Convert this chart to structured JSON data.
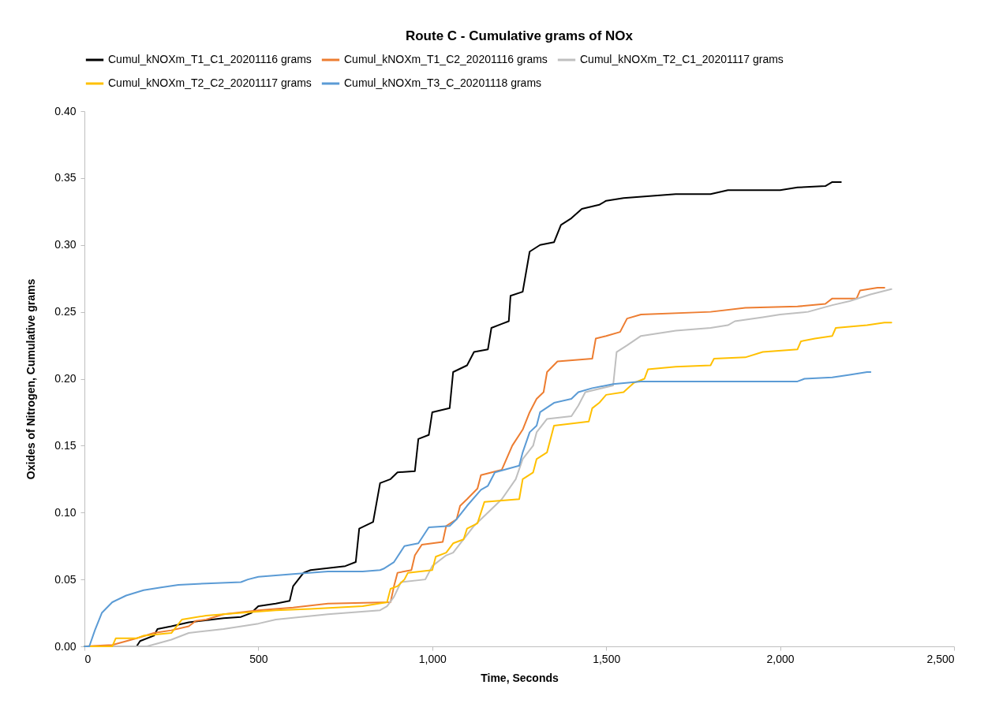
{
  "chart_data": {
    "type": "line",
    "title": "Route C - Cumulative grams of NOx",
    "xlabel": "Time, Seconds",
    "ylabel": "Oxides of Nitrogen, Cumulative grams",
    "xlim": [
      0,
      2500
    ],
    "xticks": [
      0,
      500,
      {
        "value": 1000,
        "label": "1,000"
      },
      {
        "value": 1500,
        "label": "1,500"
      },
      {
        "value": 2000,
        "label": "2,000"
      },
      {
        "value": 2500,
        "label": "2,500"
      }
    ],
    "ylim": [
      0,
      0.4
    ],
    "yticks": [
      {
        "value": 0,
        "label": "0.00"
      },
      0.05,
      {
        "value": 0.1,
        "label": "0.10"
      },
      0.15,
      {
        "value": 0.2,
        "label": "0.20"
      },
      0.25,
      {
        "value": 0.3,
        "label": "0.30"
      },
      0.35,
      {
        "value": 0.4,
        "label": "0.40"
      }
    ],
    "legend": "top",
    "line_style": "solid",
    "series": [
      {
        "name": "Cumul_kNOXm_T1_C1_20201116 grams",
        "color": "#000000",
        "x": [
          0,
          150,
          160,
          200,
          210,
          250,
          300,
          400,
          450,
          480,
          500,
          550,
          590,
          600,
          630,
          650,
          750,
          780,
          790,
          830,
          850,
          880,
          900,
          950,
          960,
          990,
          1000,
          1050,
          1060,
          1100,
          1120,
          1160,
          1170,
          1200,
          1220,
          1225,
          1260,
          1280,
          1310,
          1350,
          1370,
          1400,
          1430,
          1480,
          1500,
          1550,
          1700,
          1800,
          1850,
          2000,
          2050,
          2130,
          2150,
          2175
        ],
        "values": [
          0,
          0,
          0.004,
          0.008,
          0.013,
          0.015,
          0.018,
          0.021,
          0.022,
          0.025,
          0.03,
          0.032,
          0.034,
          0.045,
          0.055,
          0.057,
          0.06,
          0.063,
          0.088,
          0.093,
          0.122,
          0.125,
          0.13,
          0.131,
          0.155,
          0.158,
          0.175,
          0.178,
          0.205,
          0.21,
          0.22,
          0.222,
          0.238,
          0.241,
          0.243,
          0.262,
          0.265,
          0.295,
          0.3,
          0.302,
          0.315,
          0.32,
          0.327,
          0.33,
          0.333,
          0.335,
          0.338,
          0.338,
          0.341,
          0.341,
          0.343,
          0.344,
          0.347,
          0.347
        ]
      },
      {
        "name": "Cumul_kNOXm_T1_C2_20201116 grams",
        "color": "#ed7d31",
        "x": [
          0,
          80,
          150,
          200,
          250,
          300,
          320,
          350,
          400,
          500,
          600,
          700,
          880,
          890,
          900,
          940,
          950,
          970,
          1030,
          1040,
          1070,
          1080,
          1100,
          1130,
          1140,
          1200,
          1230,
          1260,
          1280,
          1300,
          1320,
          1330,
          1360,
          1460,
          1470,
          1500,
          1540,
          1560,
          1600,
          1800,
          1900,
          2050,
          2130,
          2150,
          2220,
          2230,
          2280,
          2300
        ],
        "values": [
          0,
          0.001,
          0.006,
          0.01,
          0.012,
          0.015,
          0.019,
          0.02,
          0.024,
          0.027,
          0.029,
          0.032,
          0.033,
          0.045,
          0.055,
          0.057,
          0.068,
          0.076,
          0.078,
          0.09,
          0.095,
          0.105,
          0.11,
          0.118,
          0.128,
          0.132,
          0.15,
          0.162,
          0.175,
          0.185,
          0.19,
          0.205,
          0.213,
          0.215,
          0.23,
          0.232,
          0.235,
          0.245,
          0.248,
          0.25,
          0.253,
          0.254,
          0.256,
          0.26,
          0.26,
          0.266,
          0.268,
          0.268
        ]
      },
      {
        "name": "Cumul_kNOXm_T2_C1_20201117 grams",
        "color": "#bfbfbf",
        "x": [
          0,
          180,
          250,
          300,
          400,
          500,
          550,
          700,
          850,
          870,
          890,
          910,
          980,
          1000,
          1040,
          1060,
          1090,
          1120,
          1160,
          1200,
          1240,
          1260,
          1290,
          1300,
          1330,
          1400,
          1420,
          1440,
          1520,
          1530,
          1560,
          1600,
          1700,
          1800,
          1850,
          1870,
          1950,
          2000,
          2080,
          2150,
          2200,
          2260,
          2320
        ],
        "values": [
          0,
          0,
          0.005,
          0.01,
          0.013,
          0.017,
          0.02,
          0.024,
          0.027,
          0.03,
          0.037,
          0.048,
          0.05,
          0.06,
          0.068,
          0.07,
          0.08,
          0.09,
          0.1,
          0.11,
          0.125,
          0.14,
          0.15,
          0.16,
          0.17,
          0.172,
          0.18,
          0.19,
          0.195,
          0.22,
          0.225,
          0.232,
          0.236,
          0.238,
          0.24,
          0.243,
          0.246,
          0.248,
          0.25,
          0.255,
          0.258,
          0.263,
          0.267
        ]
      },
      {
        "name": "Cumul_kNOXm_T2_C2_20201117 grams",
        "color": "#ffc000",
        "x": [
          0,
          80,
          90,
          150,
          170,
          250,
          280,
          350,
          450,
          550,
          650,
          800,
          870,
          880,
          900,
          920,
          930,
          1000,
          1010,
          1040,
          1060,
          1090,
          1100,
          1130,
          1150,
          1250,
          1260,
          1290,
          1300,
          1330,
          1350,
          1450,
          1460,
          1480,
          1500,
          1550,
          1580,
          1610,
          1620,
          1700,
          1800,
          1810,
          1900,
          1950,
          2050,
          2060,
          2100,
          2150,
          2160,
          2250,
          2300,
          2320
        ],
        "values": [
          0,
          0,
          0.006,
          0.006,
          0.008,
          0.01,
          0.02,
          0.023,
          0.025,
          0.027,
          0.028,
          0.03,
          0.033,
          0.043,
          0.045,
          0.05,
          0.055,
          0.057,
          0.067,
          0.07,
          0.077,
          0.08,
          0.088,
          0.092,
          0.108,
          0.11,
          0.125,
          0.13,
          0.14,
          0.145,
          0.165,
          0.168,
          0.178,
          0.182,
          0.188,
          0.19,
          0.197,
          0.2,
          0.207,
          0.209,
          0.21,
          0.215,
          0.216,
          0.22,
          0.222,
          0.228,
          0.23,
          0.232,
          0.238,
          0.24,
          0.242,
          0.242
        ]
      },
      {
        "name": "Cumul_kNOXm_T3_C_20201118 grams",
        "color": "#5b9bd5",
        "x": [
          0,
          14,
          30,
          50,
          80,
          120,
          170,
          220,
          270,
          350,
          450,
          470,
          500,
          600,
          700,
          800,
          850,
          860,
          890,
          920,
          960,
          990,
          1050,
          1070,
          1100,
          1140,
          1160,
          1180,
          1250,
          1260,
          1280,
          1300,
          1310,
          1350,
          1400,
          1420,
          1460,
          1520,
          1600,
          1800,
          2050,
          2070,
          2150,
          2200,
          2250,
          2260
        ],
        "values": [
          0,
          0,
          0.012,
          0.025,
          0.033,
          0.038,
          0.042,
          0.044,
          0.046,
          0.047,
          0.048,
          0.05,
          0.052,
          0.054,
          0.056,
          0.056,
          0.057,
          0.058,
          0.063,
          0.075,
          0.077,
          0.089,
          0.09,
          0.095,
          0.105,
          0.117,
          0.12,
          0.13,
          0.135,
          0.145,
          0.16,
          0.165,
          0.175,
          0.182,
          0.185,
          0.19,
          0.193,
          0.196,
          0.198,
          0.198,
          0.198,
          0.2,
          0.201,
          0.203,
          0.205,
          0.205
        ]
      }
    ]
  }
}
